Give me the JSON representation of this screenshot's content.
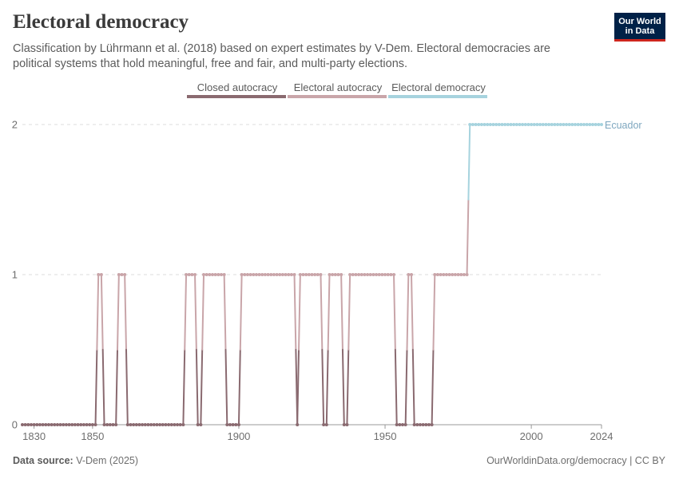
{
  "header": {
    "title": "Electoral democracy",
    "subtitle": "Classification by Lührmann et al. (2018) based on expert estimates by V-Dem. Electoral democracies are political systems that hold meaningful, free and fair, and multi-party elections."
  },
  "logo": {
    "line1": "Our World",
    "line2": "in Data"
  },
  "footer": {
    "source_label": "Data source:",
    "source_value": "V-Dem (2025)",
    "url": "OurWorldinData.org/democracy | CC BY"
  },
  "chart_data": {
    "type": "line",
    "entity": "Ecuador",
    "xlim": [
      1826,
      2024
    ],
    "ylim": [
      0,
      2
    ],
    "y_ticks": [
      0,
      1,
      2
    ],
    "x_ticks": [
      1830,
      1850,
      1900,
      1950,
      2000,
      2024
    ],
    "legend": [
      {
        "name": "Closed autocracy",
        "color": "#8a6a70"
      },
      {
        "name": "Electoral autocracy",
        "color": "#c9a5a9"
      },
      {
        "name": "Electoral democracy",
        "color": "#a6d3de"
      }
    ],
    "label_color": "#7ea7bf",
    "grid_color": "#dddddd",
    "segments": [
      {
        "from": 1826,
        "to": 1851,
        "value": 0
      },
      {
        "from": 1852,
        "to": 1853,
        "value": 1
      },
      {
        "from": 1854,
        "to": 1858,
        "value": 0
      },
      {
        "from": 1859,
        "to": 1861,
        "value": 1
      },
      {
        "from": 1862,
        "to": 1881,
        "value": 0
      },
      {
        "from": 1882,
        "to": 1885,
        "value": 1
      },
      {
        "from": 1886,
        "to": 1887,
        "value": 0
      },
      {
        "from": 1888,
        "to": 1895,
        "value": 1
      },
      {
        "from": 1896,
        "to": 1900,
        "value": 0
      },
      {
        "from": 1901,
        "to": 1919,
        "value": 1
      },
      {
        "from": 1920,
        "to": 1920,
        "value": 0
      },
      {
        "from": 1921,
        "to": 1928,
        "value": 1
      },
      {
        "from": 1929,
        "to": 1930,
        "value": 0
      },
      {
        "from": 1931,
        "to": 1935,
        "value": 1
      },
      {
        "from": 1936,
        "to": 1937,
        "value": 0
      },
      {
        "from": 1938,
        "to": 1953,
        "value": 1
      },
      {
        "from": 1954,
        "to": 1957,
        "value": 0
      },
      {
        "from": 1958,
        "to": 1959,
        "value": 1
      },
      {
        "from": 1960,
        "to": 1966,
        "value": 0
      },
      {
        "from": 1967,
        "to": 1978,
        "value": 1
      },
      {
        "from": 1979,
        "to": 2024,
        "value": 2
      }
    ]
  }
}
